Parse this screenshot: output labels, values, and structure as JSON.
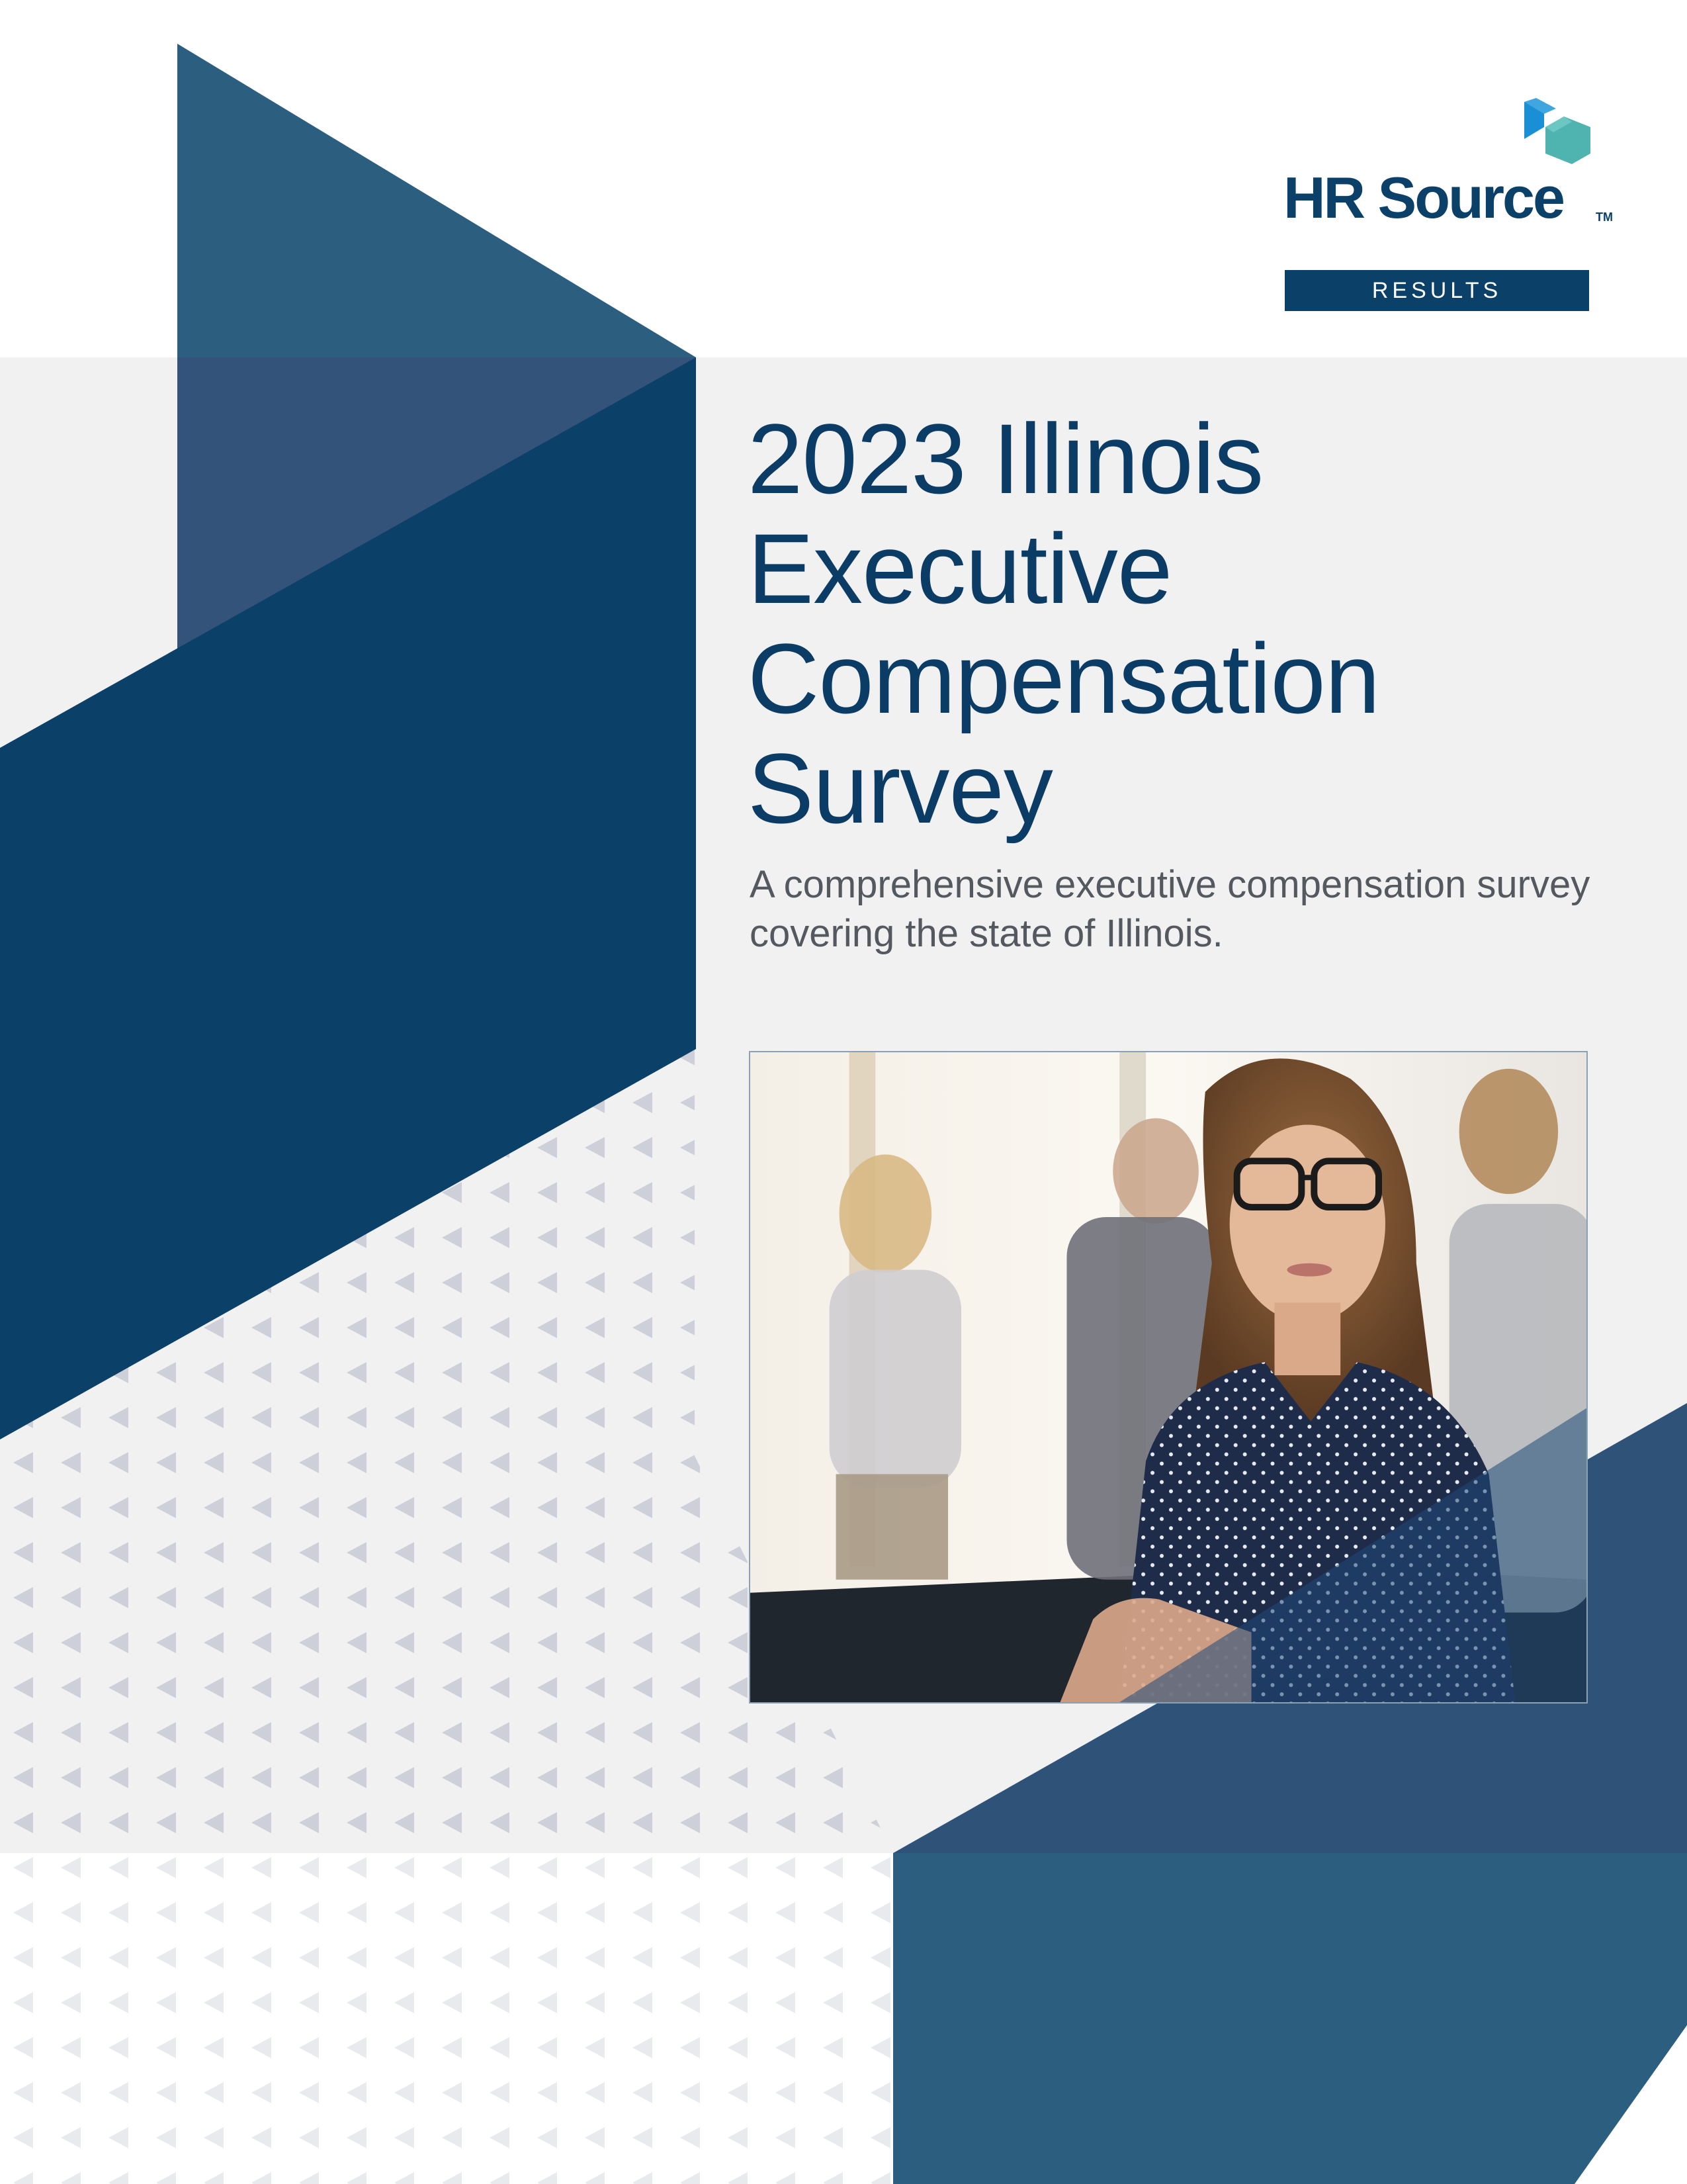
{
  "brand": {
    "logo_text": "HR Source",
    "trademark": "TM",
    "badge": "RESULTS",
    "colors": {
      "navy": "#0b4068",
      "steel_blue": "#2c5e80",
      "light_gray": "#f1f1f2",
      "accent_blue": "#1b8fd6",
      "accent_teal": "#4fb3b0"
    }
  },
  "cover": {
    "title_lines": [
      "2023 Illinois",
      "Executive",
      "Compensation",
      "Survey"
    ],
    "subtitle": "A comprehensive executive compensation survey covering the state of Illinois."
  },
  "image": {
    "subject": "photo"
  }
}
